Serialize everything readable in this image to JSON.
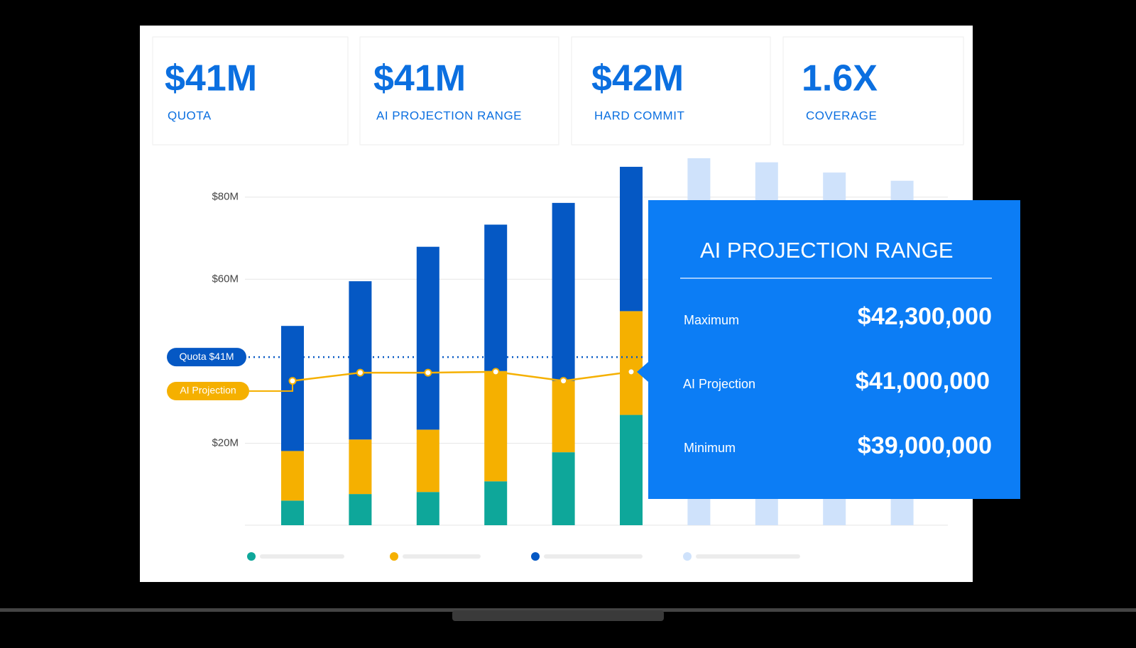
{
  "kpis": [
    {
      "value": "$41M",
      "label": "QUOTA"
    },
    {
      "value": "$41M",
      "label": "AI PROJECTION RANGE"
    },
    {
      "value": "$42M",
      "label": "HARD COMMIT"
    },
    {
      "value": "1.6X",
      "label": "COVERAGE"
    }
  ],
  "chart": {
    "type": "bar",
    "stacked": true,
    "ylim": [
      0,
      90
    ],
    "yticks": [
      {
        "value": 20,
        "label": "$20M"
      },
      {
        "value": 60,
        "label": "$60M"
      },
      {
        "value": 80,
        "label": "$80M"
      }
    ],
    "grid": true,
    "series": [
      {
        "color": "#0ea79a",
        "values": [
          6,
          7.6,
          8.1,
          10.7,
          17.8,
          26.9,
          null,
          null,
          null,
          null
        ]
      },
      {
        "color": "#f5b000",
        "values": [
          12.1,
          13.3,
          15.2,
          26.9,
          17.4,
          25.3,
          null,
          null,
          null,
          null
        ]
      },
      {
        "color": "#0558c4",
        "values": [
          30.5,
          38.6,
          44.6,
          35.7,
          43.4,
          35.2,
          null,
          null,
          null,
          null
        ]
      },
      {
        "color": "#cfe2fb",
        "values": [
          null,
          null,
          null,
          null,
          null,
          null,
          89.5,
          88.5,
          86,
          84
        ]
      }
    ],
    "quota": {
      "label": "Quota $41M",
      "value": 41,
      "color": "#0558c4"
    },
    "projection": {
      "label": "AI Projection",
      "color": "#f5b000",
      "values": [
        35.2,
        37.2,
        37.2,
        37.4,
        35.2,
        37.4
      ]
    }
  },
  "tooltip": {
    "title": "AI PROJECTION RANGE",
    "rows": [
      {
        "label": "Maximum",
        "value": "$42,300,000"
      },
      {
        "label": "AI Projection",
        "value": "$41,000,000"
      },
      {
        "label": "Minimum",
        "value": "$39,000,000"
      }
    ]
  }
}
